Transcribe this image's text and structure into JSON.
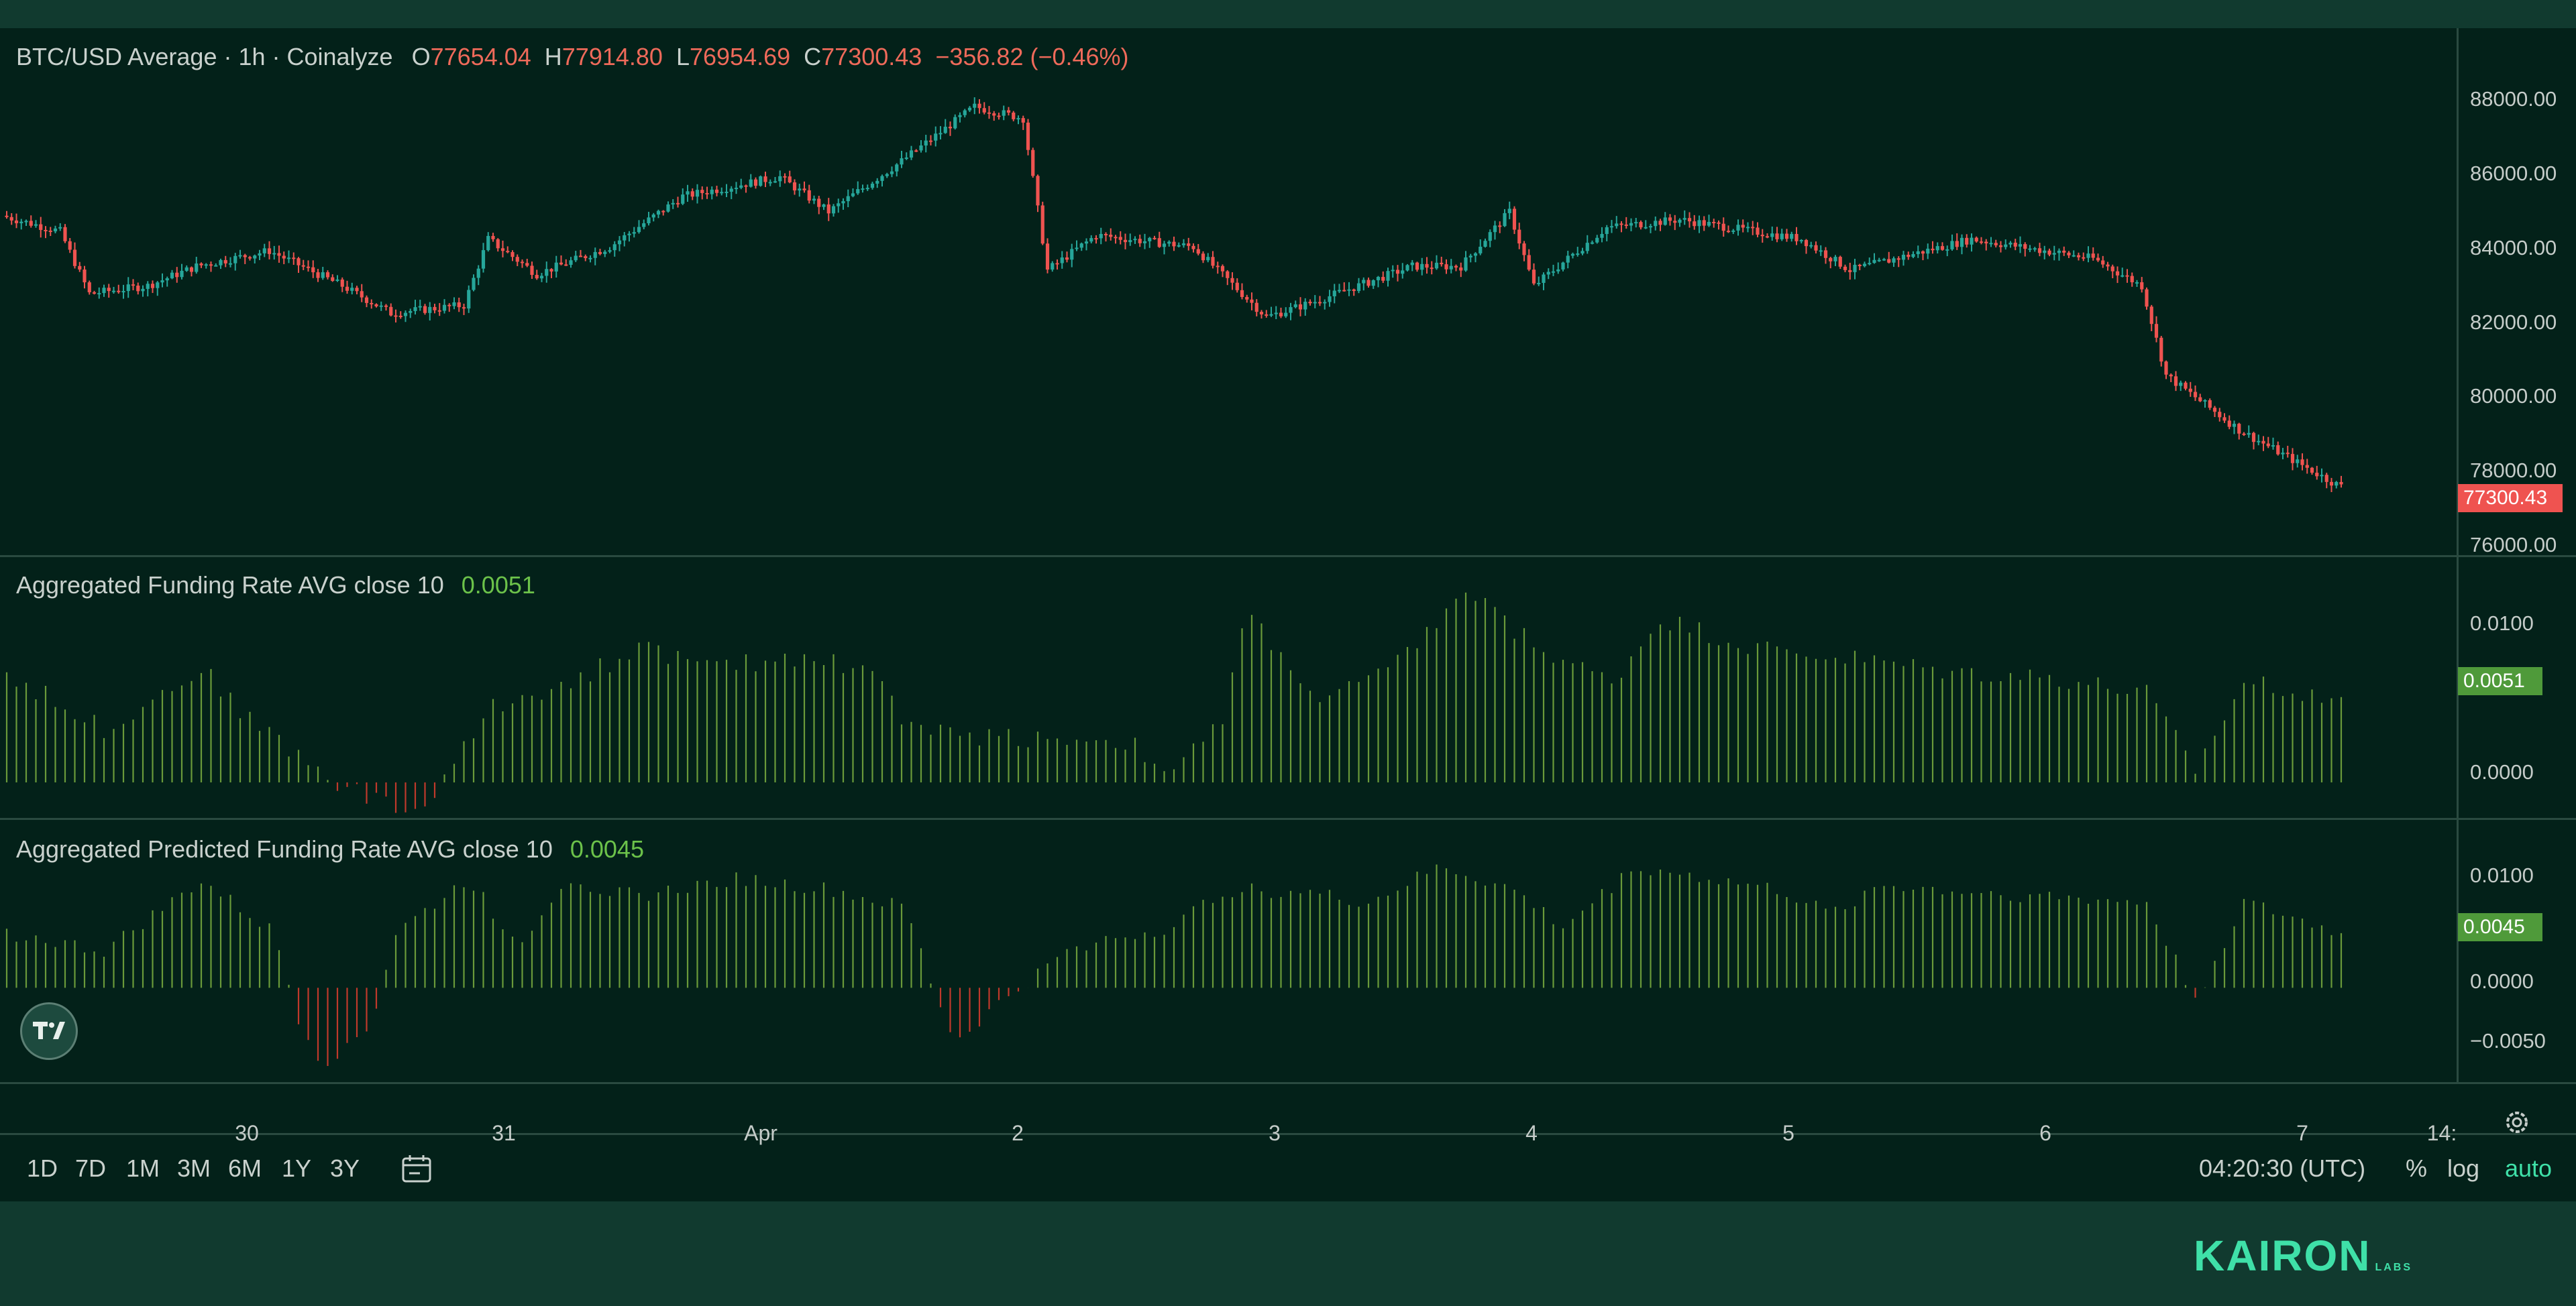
{
  "header": {
    "symbol_title": "BTC/USD Average · 1h · Coinalyze",
    "open_label": "O",
    "open_value": "77654.04",
    "high_label": "H",
    "high_value": "77914.80",
    "low_label": "L",
    "low_value": "76954.69",
    "close_label": "C",
    "close_value": "77300.43",
    "change": "−356.82 (−0.46%)"
  },
  "panes": {
    "funding": {
      "title": "Aggregated Funding Rate AVG close 10",
      "value": "0.0051"
    },
    "predicted": {
      "title": "Aggregated Predicted Funding Rate AVG close 10",
      "value": "0.0045"
    }
  },
  "price_axis": [
    "88000.00",
    "86000.00",
    "84000.00",
    "82000.00",
    "80000.00",
    "78000.00",
    "76000.00"
  ],
  "price_tag": "77300.43",
  "funding_axis": [
    "0.0100",
    "0.0000"
  ],
  "funding_tag": "0.0051",
  "predicted_axis": [
    "0.0100",
    "0.0000",
    "−0.0050"
  ],
  "predicted_tag": "0.0045",
  "time_axis": [
    "30",
    "31",
    "Apr",
    "2",
    "3",
    "4",
    "5",
    "6",
    "7",
    "14:"
  ],
  "toolbar": {
    "ranges": [
      "1D",
      "7D",
      "1M",
      "3M",
      "6M",
      "1Y",
      "3Y"
    ],
    "clock": "04:20:30 (UTC)",
    "percent": "%",
    "log": "log",
    "auto": "auto"
  },
  "brand": {
    "name": "KAIRON",
    "sub": "LABS"
  },
  "colors": {
    "up": "#26a69a",
    "down": "#ef5350",
    "hist_pos": "#6a9a3a",
    "hist_neg": "#c0392b",
    "bg": "#032119"
  },
  "chart_data": [
    {
      "type": "candlestick",
      "title": "BTC/USD Average · 1h · Coinalyze",
      "x_ticks": [
        "30",
        "31",
        "Apr",
        "2",
        "3",
        "4",
        "5",
        "6",
        "7"
      ],
      "ylim": [
        76000,
        88500
      ],
      "anchors": [
        [
          0,
          84200
        ],
        [
          12,
          83800
        ],
        [
          18,
          82200
        ],
        [
          30,
          82400
        ],
        [
          40,
          82900
        ],
        [
          55,
          83300
        ],
        [
          70,
          82400
        ],
        [
          80,
          81700
        ],
        [
          95,
          81900
        ],
        [
          100,
          83600
        ],
        [
          110,
          82700
        ],
        [
          125,
          83400
        ],
        [
          140,
          84700
        ],
        [
          160,
          85200
        ],
        [
          170,
          84300
        ],
        [
          185,
          85600
        ],
        [
          200,
          87000
        ],
        [
          210,
          86700
        ],
        [
          215,
          82800
        ],
        [
          225,
          83700
        ],
        [
          245,
          83400
        ],
        [
          260,
          81600
        ],
        [
          270,
          82000
        ],
        [
          290,
          82900
        ],
        [
          300,
          82900
        ],
        [
          310,
          84300
        ],
        [
          315,
          82400
        ],
        [
          330,
          83900
        ],
        [
          345,
          84100
        ],
        [
          370,
          83600
        ],
        [
          380,
          82800
        ],
        [
          405,
          83600
        ],
        [
          430,
          83100
        ],
        [
          440,
          82400
        ],
        [
          445,
          80100
        ],
        [
          460,
          78700
        ],
        [
          480,
          77300
        ]
      ],
      "last": 77300.43
    },
    {
      "type": "bar",
      "title": "Aggregated Funding Rate AVG close 10",
      "ylim": [
        -0.0012,
        0.0125
      ],
      "anchors": [
        [
          0,
          0.0065
        ],
        [
          20,
          0.0032
        ],
        [
          40,
          0.0068
        ],
        [
          50,
          0.0038
        ],
        [
          65,
          0.0005
        ],
        [
          75,
          -0.001
        ],
        [
          85,
          -0.0018
        ],
        [
          100,
          0.0045
        ],
        [
          120,
          0.0065
        ],
        [
          130,
          0.0082
        ],
        [
          145,
          0.0068
        ],
        [
          165,
          0.0076
        ],
        [
          180,
          0.0064
        ],
        [
          185,
          0.0032
        ],
        [
          200,
          0.0028
        ],
        [
          230,
          0.0025
        ],
        [
          240,
          0.0005
        ],
        [
          250,
          0.0038
        ],
        [
          255,
          0.0102
        ],
        [
          270,
          0.0048
        ],
        [
          285,
          0.0068
        ],
        [
          300,
          0.0115
        ],
        [
          315,
          0.008
        ],
        [
          330,
          0.006
        ],
        [
          340,
          0.0098
        ],
        [
          360,
          0.008
        ],
        [
          380,
          0.0074
        ],
        [
          400,
          0.0066
        ],
        [
          420,
          0.0063
        ],
        [
          440,
          0.0053
        ],
        [
          450,
          0.0008
        ],
        [
          460,
          0.006
        ],
        [
          480,
          0.0051
        ]
      ],
      "last": 0.0051
    },
    {
      "type": "bar",
      "title": "Aggregated Predicted Funding Rate AVG close 10",
      "ylim": [
        -0.0065,
        0.0125
      ],
      "anchors": [
        [
          0,
          0.0045
        ],
        [
          20,
          0.003
        ],
        [
          40,
          0.0088
        ],
        [
          55,
          0.0045
        ],
        [
          60,
          -0.0025
        ],
        [
          65,
          -0.0063
        ],
        [
          75,
          -0.003
        ],
        [
          80,
          0.0045
        ],
        [
          95,
          0.009
        ],
        [
          105,
          0.0035
        ],
        [
          115,
          0.009
        ],
        [
          130,
          0.0075
        ],
        [
          150,
          0.009
        ],
        [
          170,
          0.008
        ],
        [
          185,
          0.0065
        ],
        [
          190,
          0.0005
        ],
        [
          195,
          -0.0045
        ],
        [
          205,
          -0.001
        ],
        [
          220,
          0.0035
        ],
        [
          240,
          0.005
        ],
        [
          250,
          0.008
        ],
        [
          265,
          0.008
        ],
        [
          280,
          0.007
        ],
        [
          295,
          0.01
        ],
        [
          310,
          0.008
        ],
        [
          320,
          0.005
        ],
        [
          335,
          0.01
        ],
        [
          350,
          0.009
        ],
        [
          365,
          0.008
        ],
        [
          375,
          0.006
        ],
        [
          385,
          0.0085
        ],
        [
          400,
          0.008
        ],
        [
          420,
          0.0075
        ],
        [
          440,
          0.007
        ],
        [
          450,
          -0.001
        ],
        [
          460,
          0.007
        ],
        [
          480,
          0.0045
        ]
      ],
      "last": 0.0045
    }
  ]
}
